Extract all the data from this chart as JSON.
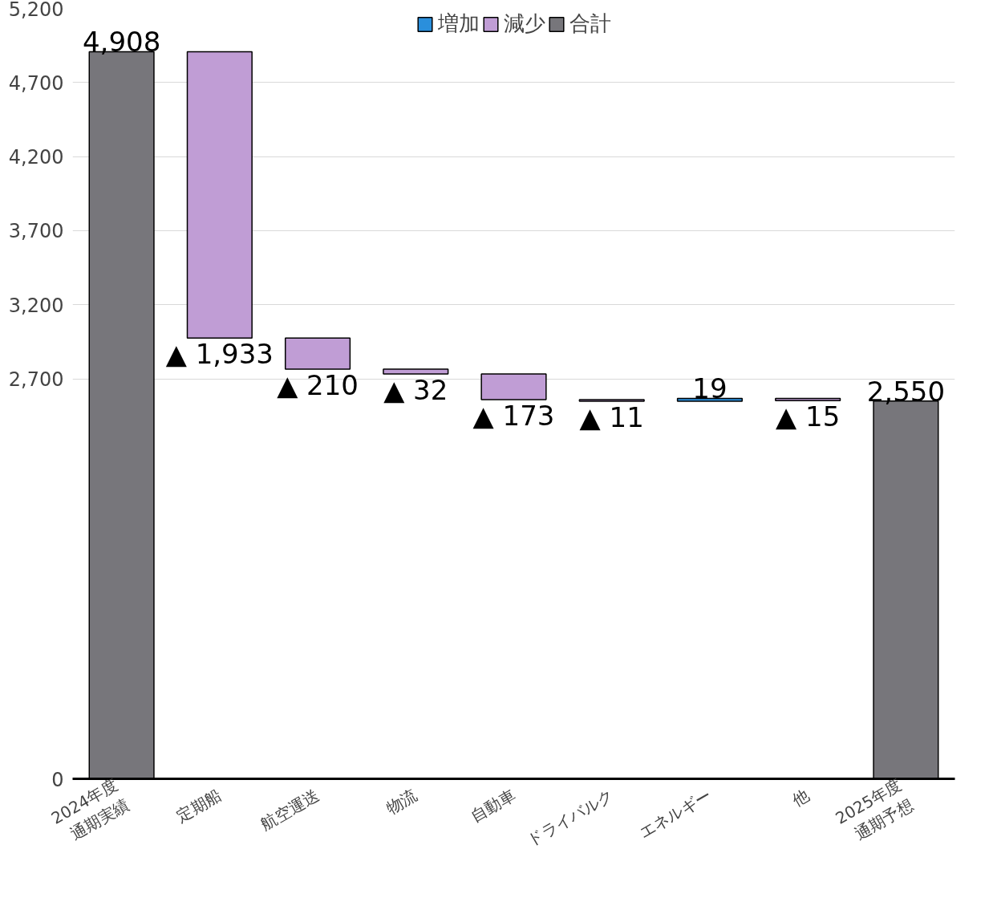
{
  "chart_data": {
    "type": "bar",
    "categories": [
      "2024年度\n通期実績",
      "定期船",
      "航空運送",
      "物流",
      "自動車",
      "ドライバルク",
      "エネルギー",
      "他",
      "2025年度\n通期予想"
    ],
    "series": [
      {
        "name": "増加",
        "color": "#2a8fdc",
        "values": [
          null,
          null,
          null,
          null,
          null,
          null,
          19,
          null,
          null
        ],
        "base": [
          null,
          null,
          null,
          null,
          null,
          null,
          2549,
          null,
          null
        ],
        "value_labels": [
          null,
          null,
          null,
          null,
          null,
          null,
          "19",
          null,
          null
        ]
      },
      {
        "name": "減少",
        "color": "#c09dd5",
        "values": [
          null,
          -1933,
          -210,
          -32,
          -173,
          -11,
          null,
          -15,
          null
        ],
        "base": [
          null,
          4908,
          2975,
          2765,
          2733,
          2560,
          null,
          2568,
          null
        ],
        "value_labels": [
          null,
          "▲ 1,933",
          "▲ 210",
          "▲ 32",
          "▲ 173",
          "▲ 11",
          null,
          "▲ 15",
          null
        ]
      },
      {
        "name": "合計",
        "color": "#77767b",
        "values": [
          4908,
          null,
          null,
          null,
          null,
          null,
          null,
          null,
          2550
        ],
        "base": [
          0,
          null,
          null,
          null,
          null,
          null,
          null,
          null,
          0
        ],
        "value_labels": [
          "4,908",
          null,
          null,
          null,
          null,
          null,
          null,
          null,
          "2,550"
        ]
      }
    ],
    "ylim": [
      0,
      5200
    ],
    "yticks": [
      0,
      {
        "value": 2700,
        "label": "2,700"
      },
      {
        "value": 3200,
        "label": "3,200"
      },
      {
        "value": 3700,
        "label": "3,700"
      },
      {
        "value": 4200,
        "label": "4,200"
      },
      {
        "value": 4700,
        "label": "4,700"
      },
      {
        "value": 5200,
        "label": "5,200"
      }
    ],
    "grid": "y",
    "legend": "top"
  }
}
